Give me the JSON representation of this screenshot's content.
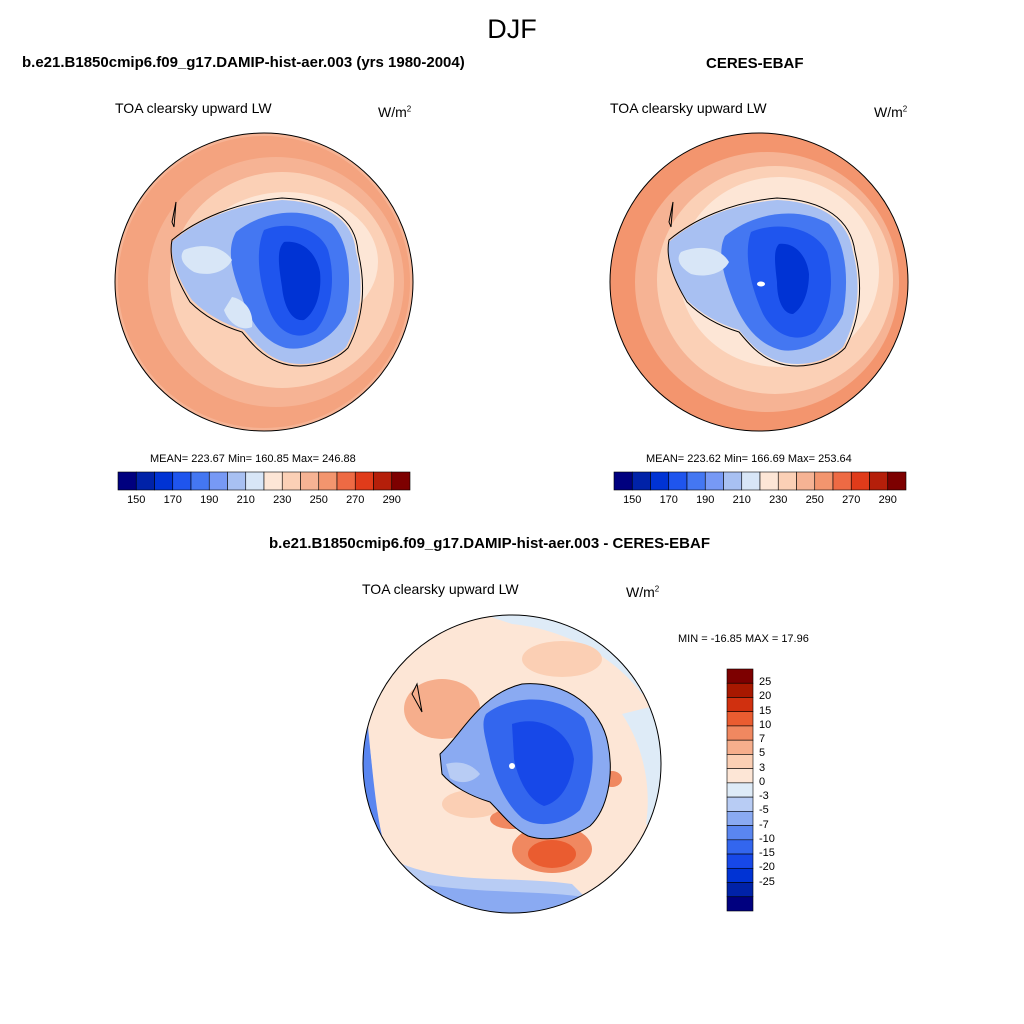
{
  "season": "DJF",
  "colors": {
    "abs_levels": [
      "#00007f",
      "#0022a8",
      "#0033d4",
      "#1f55ee",
      "#4477f2",
      "#7799f5",
      "#a8c0f2",
      "#d8e6f7",
      "#fde6d6",
      "#fbd0b6",
      "#f6b394",
      "#f3956e",
      "#ee6a44",
      "#e03b1a",
      "#b51f0a",
      "#7d0000"
    ],
    "diff_levels": [
      "#00007f",
      "#0022a8",
      "#0033d4",
      "#1748e8",
      "#3366ee",
      "#5a86f0",
      "#8aaaf2",
      "#b8ccf4",
      "#deebf7",
      "#fde6d6",
      "#fbcfb4",
      "#f6ae8c",
      "#f08860",
      "#ea5c30",
      "#d0300f",
      "#a81800",
      "#7d0000"
    ],
    "land_high": "#1547e0",
    "land_core": "#0e3ac8",
    "land_edge": "#b8ccf4"
  },
  "panels": {
    "model": {
      "title": "b.e21.B1850cmip6.f09_g17.DAMIP-hist-aer.003 (yrs 1980-2004)",
      "variable": "TOA clearsky upward LW",
      "units": "W/m",
      "units_sup": "2",
      "stats": "MEAN= 223.67  Min= 160.85  Max= 246.88",
      "ticks": [
        "150",
        "170",
        "190",
        "210",
        "230",
        "250",
        "270",
        "290"
      ]
    },
    "obs": {
      "title": "CERES-EBAF",
      "variable": "TOA clearsky upward LW",
      "units": "W/m",
      "units_sup": "2",
      "stats": "MEAN= 223.62  Min= 166.69  Max= 253.64",
      "ticks": [
        "150",
        "170",
        "190",
        "210",
        "230",
        "250",
        "270",
        "290"
      ]
    },
    "diff": {
      "title": "b.e21.B1850cmip6.f09_g17.DAMIP-hist-aer.003 - CERES-EBAF",
      "variable": "TOA clearsky upward LW",
      "units": "W/m",
      "units_sup": "2",
      "stats": "MIN = -16.85 MAX =  17.96",
      "ticks": [
        "25",
        "20",
        "15",
        "10",
        "7",
        "5",
        "3",
        "0",
        "-3",
        "-5",
        "-7",
        "-10",
        "-15",
        "-20",
        "-25"
      ]
    }
  }
}
